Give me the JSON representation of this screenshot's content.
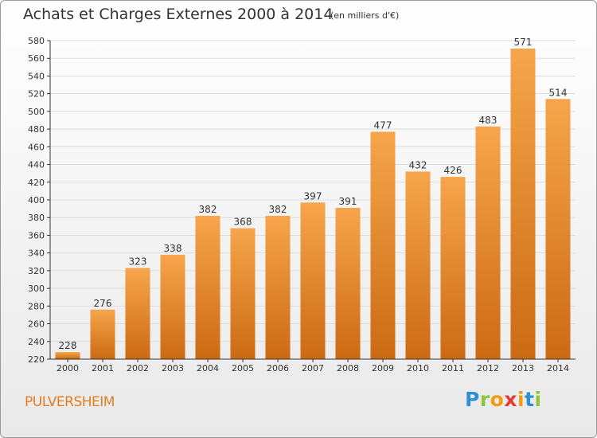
{
  "header": {
    "title": "Achats et Charges Externes 2000 à 2014",
    "subtitle": "(en milliers d'€)"
  },
  "footer": {
    "commune": "PULVERSHEIM",
    "logo_letters": [
      "P",
      "r",
      "o",
      "x",
      "i",
      "t",
      "i"
    ],
    "logo_colors": [
      "#2e8fd6",
      "#8cc63f",
      "#f39c12",
      "#e53935",
      "#f39c12",
      "#2e8fd6",
      "#8cc63f"
    ]
  },
  "colors": {
    "bar_light": "#f7a54c",
    "bar_dark": "#cc6a12",
    "grid": "#dddddd",
    "axis": "#333333",
    "accent": "#e57c1e"
  },
  "chart_data": {
    "type": "bar",
    "title": "Achats et Charges Externes 2000 à 2014",
    "subtitle": "(en milliers d'€)",
    "categories": [
      "2000",
      "2001",
      "2002",
      "2003",
      "2004",
      "2005",
      "2006",
      "2007",
      "2008",
      "2009",
      "2010",
      "2011",
      "2012",
      "2013",
      "2014"
    ],
    "values": [
      228,
      276,
      323,
      338,
      382,
      368,
      382,
      397,
      391,
      477,
      432,
      426,
      483,
      571,
      514
    ],
    "ylim": [
      220,
      580
    ],
    "yticks": [
      220,
      240,
      260,
      280,
      300,
      320,
      340,
      360,
      380,
      400,
      420,
      440,
      460,
      480,
      500,
      520,
      540,
      560,
      580
    ],
    "grid": true,
    "data_labels": true
  }
}
